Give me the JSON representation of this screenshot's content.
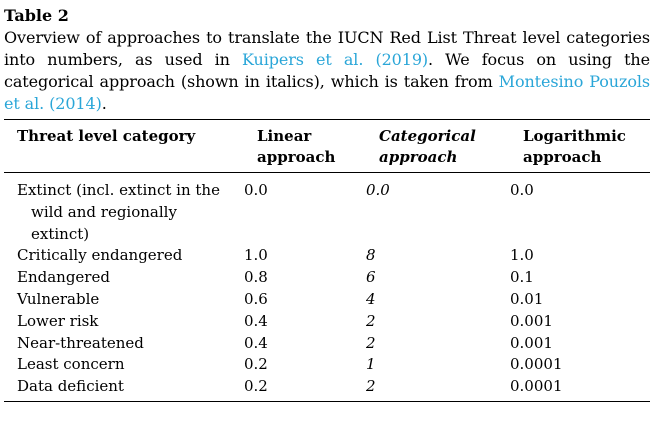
{
  "table_label": "Table 2",
  "caption": {
    "part1": "Overview of approaches to translate the IUCN Red List Threat level categories into numbers, as used in ",
    "ref1": "Kuipers et al. (2019)",
    "part2": ". We focus on using the categorical approach (shown in italics), which is taken from ",
    "ref2": "Montesino Pouzols et al. (2014)",
    "part3": "."
  },
  "colors": {
    "link": "#2aa6d8",
    "text": "#000000"
  },
  "table": {
    "headers": {
      "category": "Threat level category",
      "linear": "Linear approach",
      "categorical": "Categorical approach",
      "logarithmic": "Logarithmic approach"
    },
    "rows": [
      {
        "category": "Extinct (incl. extinct in the wild and regionally extinct)",
        "linear": "0.0",
        "categorical": "0.0",
        "logarithmic": "0.0"
      },
      {
        "category": "Critically endangered",
        "linear": "1.0",
        "categorical": "8",
        "logarithmic": "1.0"
      },
      {
        "category": "Endangered",
        "linear": "0.8",
        "categorical": "6",
        "logarithmic": "0.1"
      },
      {
        "category": "Vulnerable",
        "linear": "0.6",
        "categorical": "4",
        "logarithmic": "0.01"
      },
      {
        "category": "Lower risk",
        "linear": "0.4",
        "categorical": "2",
        "logarithmic": "0.001"
      },
      {
        "category": "Near-threatened",
        "linear": "0.4",
        "categorical": "2",
        "logarithmic": "0.001"
      },
      {
        "category": "Least concern",
        "linear": "0.2",
        "categorical": "1",
        "logarithmic": "0.0001"
      },
      {
        "category": "Data deficient",
        "linear": "0.2",
        "categorical": "2",
        "logarithmic": "0.0001"
      }
    ]
  }
}
